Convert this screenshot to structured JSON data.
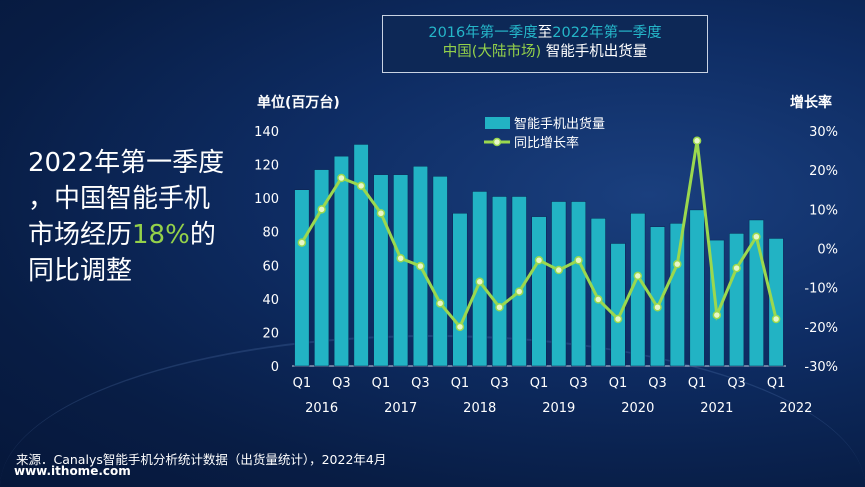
{
  "title": {
    "line1_a": "2016年第一季度",
    "line1_b": "至",
    "line1_c": "2022年第一季度",
    "line2_a": "中国(大陆市场)",
    "line2_b": " 智能手机出货量"
  },
  "headline": {
    "line1": "2022年第一季度",
    "line2": "，中国智能手机",
    "line3_pre": "市场经历",
    "highlight": "18%",
    "line3_post": "的",
    "line4": "同比调整"
  },
  "footer": {
    "source": "来源．Canalys智能手机分析统计数据（出货量统计），2022年4月",
    "website": "www.ithome.com"
  },
  "colors": {
    "bar": "#22b3c4",
    "line": "#9bd84e",
    "teal": "#25b6c9",
    "green": "#94d14a"
  },
  "chart_data": {
    "type": "bar+line",
    "title": "2016年第一季度至2022年第一季度 中国(大陆市场) 智能手机出货量",
    "ylabel": "单位(百万台)",
    "y2label": "增长率",
    "ylim": [
      0,
      140
    ],
    "yticks": [
      0,
      20,
      40,
      60,
      80,
      100,
      120,
      140
    ],
    "y2lim": [
      -30,
      30
    ],
    "y2ticks": [
      "-30%",
      "-20%",
      "-10%",
      "0%",
      "10%",
      "20%",
      "30%"
    ],
    "legend": {
      "bar": "智能手机出货量",
      "line": "同比增长率"
    },
    "categories": [
      "Q1 2016",
      "Q2 2016",
      "Q3 2016",
      "Q4 2016",
      "Q1 2017",
      "Q2 2017",
      "Q3 2017",
      "Q4 2017",
      "Q1 2018",
      "Q2 2018",
      "Q3 2018",
      "Q4 2018",
      "Q1 2019",
      "Q2 2019",
      "Q3 2019",
      "Q4 2019",
      "Q1 2020",
      "Q2 2020",
      "Q3 2020",
      "Q4 2020",
      "Q1 2021",
      "Q2 2021",
      "Q3 2021",
      "Q4 2021",
      "Q1 2022"
    ],
    "xticks": [
      {
        "i": 0,
        "q": "Q1",
        "y": "2016"
      },
      {
        "i": 2,
        "q": "Q3",
        "y": ""
      },
      {
        "i": 4,
        "q": "Q1",
        "y": "2017"
      },
      {
        "i": 6,
        "q": "Q3",
        "y": ""
      },
      {
        "i": 8,
        "q": "Q1",
        "y": "2018"
      },
      {
        "i": 10,
        "q": "Q3",
        "y": ""
      },
      {
        "i": 12,
        "q": "Q1",
        "y": "2019"
      },
      {
        "i": 14,
        "q": "Q3",
        "y": ""
      },
      {
        "i": 16,
        "q": "Q1",
        "y": "2020"
      },
      {
        "i": 18,
        "q": "Q3",
        "y": ""
      },
      {
        "i": 20,
        "q": "Q1",
        "y": "2021"
      },
      {
        "i": 22,
        "q": "Q3",
        "y": ""
      },
      {
        "i": 24,
        "q": "Q1",
        "y": "2022"
      }
    ],
    "shipments": [
      105,
      117,
      125,
      132,
      114,
      114,
      119,
      113,
      91,
      104,
      101,
      101,
      89,
      98,
      98,
      88,
      73,
      91,
      83,
      85,
      93,
      75,
      79,
      87,
      76
    ],
    "growth_pct": [
      1.5,
      10,
      18,
      16,
      9,
      -2.5,
      -4.5,
      -14,
      -20,
      -8.5,
      -15,
      -11,
      -3,
      -5.5,
      -3,
      -13,
      -18,
      -7,
      -15,
      -4,
      27.5,
      -17,
      -5,
      3,
      -18
    ]
  }
}
